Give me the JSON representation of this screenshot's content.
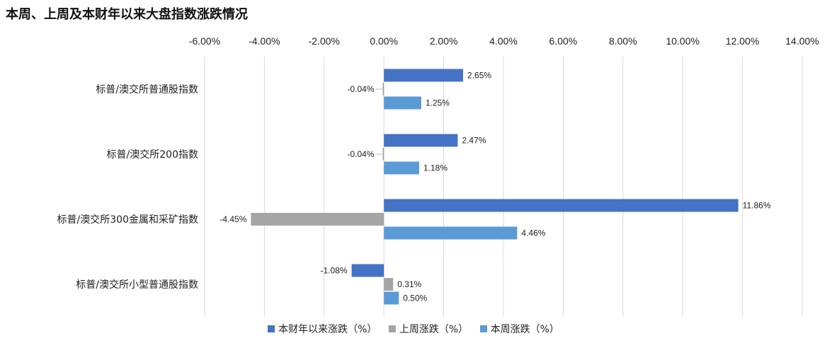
{
  "chart_data": {
    "type": "bar",
    "orientation": "horizontal",
    "title": "本周、上周及本财年以来大盘指数涨跌情况",
    "categories": [
      "标普/澳交所普通股指数",
      "标普/澳交所200指数",
      "标普/澳交所300金属和采矿指数",
      "标普/澳交所小型普通股指数"
    ],
    "series": [
      {
        "name": "本财年以来涨跌（%）",
        "color": "#4472c4",
        "values": [
          2.65,
          2.47,
          11.86,
          -1.08
        ],
        "labels": [
          "2.65%",
          "2.47%",
          "11.86%",
          "-1.08%"
        ]
      },
      {
        "name": "上周涨跌（%）",
        "color": "#a5a5a5",
        "values": [
          -0.04,
          -0.04,
          -4.45,
          0.31
        ],
        "labels": [
          "-0.04%",
          "-0.04%",
          "-4.45%",
          "0.31%"
        ]
      },
      {
        "name": "本周涨跌（%）",
        "color": "#5b9bd5",
        "values": [
          1.25,
          1.18,
          4.46,
          0.5
        ],
        "labels": [
          "1.25%",
          "1.18%",
          "4.46%",
          "0.50%"
        ]
      }
    ],
    "xlim": [
      -6,
      14
    ],
    "xticks": [
      -6,
      -4,
      -2,
      0,
      2,
      4,
      6,
      8,
      10,
      12,
      14
    ],
    "xtick_labels": [
      "-6.00%",
      "-4.00%",
      "-2.00%",
      "0.00%",
      "2.00%",
      "4.00%",
      "6.00%",
      "8.00%",
      "10.00%",
      "12.00%",
      "14.00%"
    ],
    "grid": true,
    "legend_position": "bottom"
  }
}
